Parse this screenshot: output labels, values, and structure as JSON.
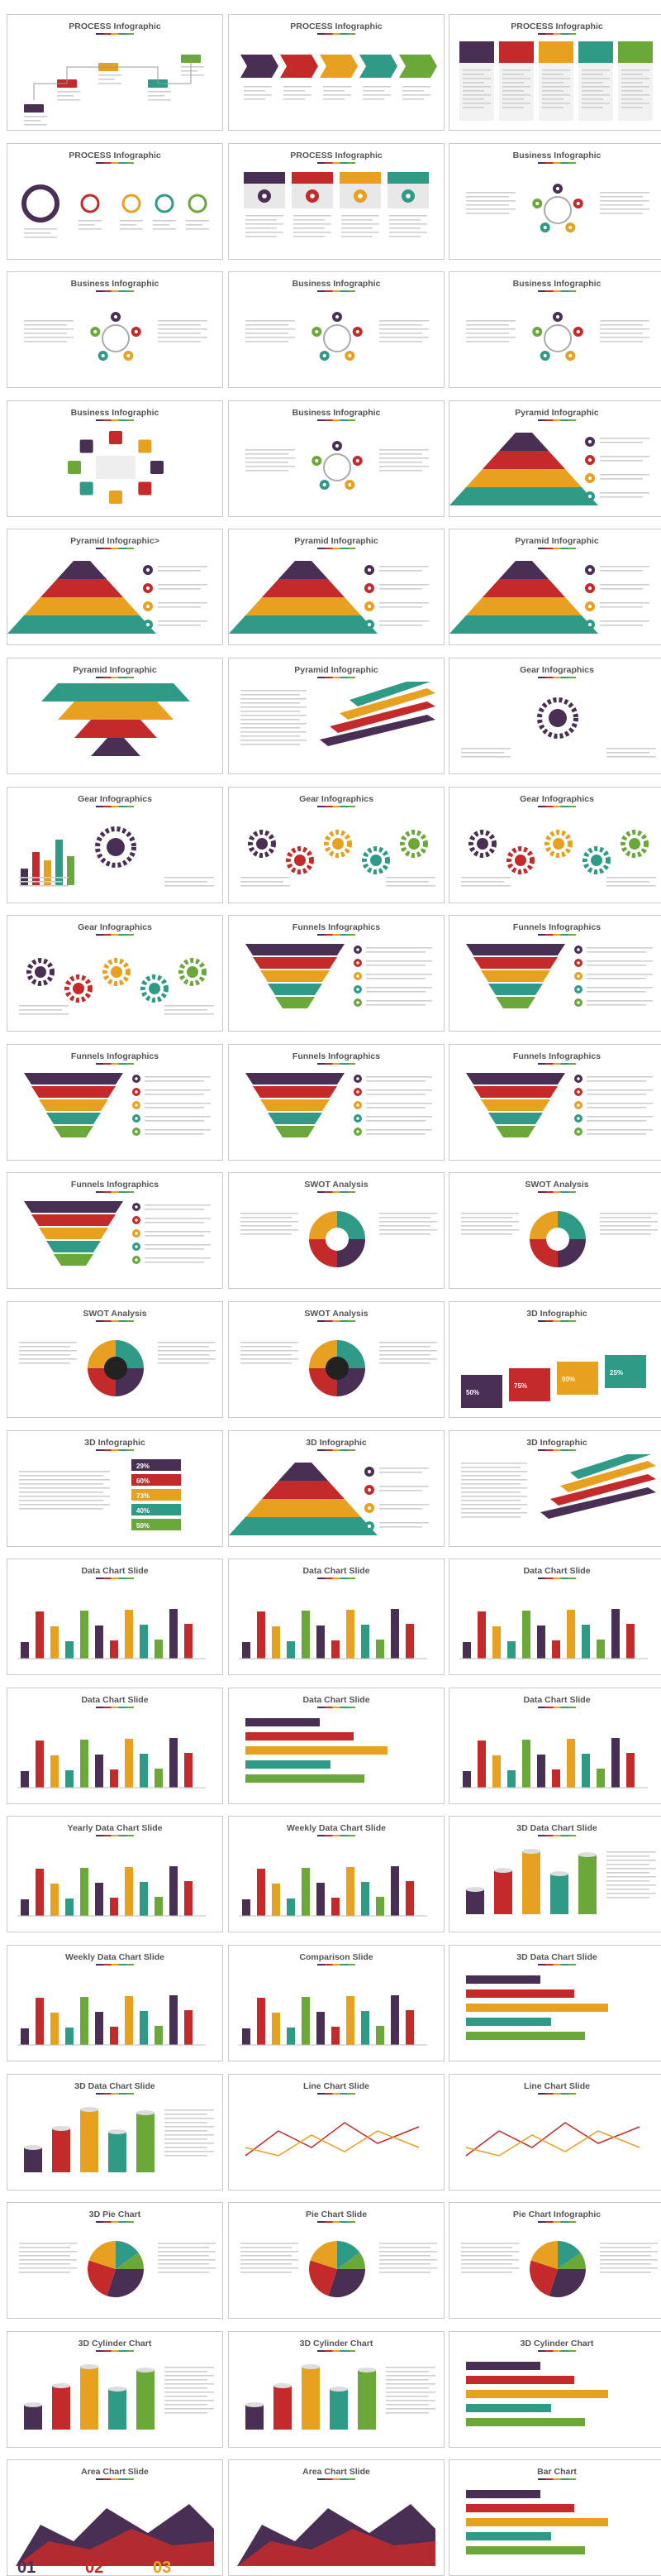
{
  "palette": [
    "#4a2f55",
    "#c42a2a",
    "#e8a020",
    "#2f9a85",
    "#6aa83a",
    "#8a8a8a"
  ],
  "slides": [
    {
      "title": "PROCESS Infographic",
      "kind": "process-steps"
    },
    {
      "title": "PROCESS Infographic",
      "kind": "process-arrows"
    },
    {
      "title": "PROCESS Infographic",
      "kind": "process-columns"
    },
    {
      "title": "PROCESS Infographic",
      "kind": "process-circles"
    },
    {
      "title": "PROCESS Infographic",
      "kind": "process-cards"
    },
    {
      "title": "Business Infographic",
      "kind": "hub"
    },
    {
      "title": "Business Infographic",
      "kind": "hub"
    },
    {
      "title": "Business Infographic",
      "kind": "hub"
    },
    {
      "title": "Business Infographic",
      "kind": "hub"
    },
    {
      "title": "Business Infographic",
      "kind": "hub-grid"
    },
    {
      "title": "Business Infographic",
      "kind": "radial"
    },
    {
      "title": "Pyramid Infographic",
      "kind": "pyramid"
    },
    {
      "title": "Pyramid Infographic>",
      "kind": "pyramid"
    },
    {
      "title": "Pyramid Infographic",
      "kind": "pyramid"
    },
    {
      "title": "Pyramid Infographic",
      "kind": "pyramid-wide"
    },
    {
      "title": "Pyramid Infographic",
      "kind": "pyramid-inverted"
    },
    {
      "title": "Pyramid Infographic",
      "kind": "layers"
    },
    {
      "title": "Gear Infographics",
      "kind": "gear"
    },
    {
      "title": "Gear Infographics",
      "kind": "gear-bars"
    },
    {
      "title": "Gear Infographics",
      "kind": "gears"
    },
    {
      "title": "Gear Infographics",
      "kind": "gears"
    },
    {
      "title": "Gear Infographics",
      "kind": "gears"
    },
    {
      "title": "Funnels Infographics",
      "kind": "funnel"
    },
    {
      "title": "Funnels Infographics",
      "kind": "funnel"
    },
    {
      "title": "Funnels Infographics",
      "kind": "funnel"
    },
    {
      "title": "Funnels Infographics",
      "kind": "funnel-ring"
    },
    {
      "title": "Funnels Infographics",
      "kind": "funnel-wide"
    },
    {
      "title": "Funnels Infographics",
      "kind": "funnel-arrows"
    },
    {
      "title": "SWOT Analysis",
      "kind": "swot-circle"
    },
    {
      "title": "SWOT Analysis",
      "kind": "swot-half"
    },
    {
      "title": "SWOT Analysis",
      "kind": "swot-hub"
    },
    {
      "title": "SWOT Analysis",
      "kind": "swot-hub"
    },
    {
      "title": "3D Infographic",
      "kind": "3d-blocks",
      "labels": [
        "50%",
        "75%",
        "90%",
        "25%"
      ]
    },
    {
      "title": "3D Infographic",
      "kind": "3d-stack",
      "labels": [
        "29%",
        "60%",
        "73%",
        "40%",
        "50%"
      ]
    },
    {
      "title": "3D Infographic",
      "kind": "3d-pyramid"
    },
    {
      "title": "3D Infographic",
      "kind": "3d-stairs"
    },
    {
      "title": "Data Chart Slide",
      "kind": "bars"
    },
    {
      "title": "Data Chart Slide",
      "kind": "bars"
    },
    {
      "title": "Data Chart Slide",
      "kind": "bars"
    },
    {
      "title": "Data Chart Slide",
      "kind": "bars"
    },
    {
      "title": "Data Chart Slide",
      "kind": "hbars"
    },
    {
      "title": "Data Chart Slide",
      "kind": "bars"
    },
    {
      "title": "Yearly Data Chart Slide",
      "kind": "bars"
    },
    {
      "title": "Weekly Data Chart Slide",
      "kind": "bars"
    },
    {
      "title": "3D Data Chart Slide",
      "kind": "cylinders"
    },
    {
      "title": "Weekly Data Chart Slide",
      "kind": "bars"
    },
    {
      "title": "Comparison Slide",
      "kind": "bars"
    },
    {
      "title": "3D Data Chart Slide",
      "kind": "hbars"
    },
    {
      "title": "3D Data Chart Slide",
      "kind": "cylinders"
    },
    {
      "title": "Line Chart Slide",
      "kind": "line"
    },
    {
      "title": "Line Chart Slide",
      "kind": "line"
    },
    {
      "title": "3D Pie Chart",
      "kind": "pie"
    },
    {
      "title": "Pie Chart Slide",
      "kind": "pie"
    },
    {
      "title": "Pie Chart Infographic",
      "kind": "pie"
    },
    {
      "title": "3D Cylinder Chart",
      "kind": "cylinders"
    },
    {
      "title": "3D Cylinder Chart",
      "kind": "cylinders"
    },
    {
      "title": "3D Cylinder Chart",
      "kind": "hbars"
    },
    {
      "title": "Area Chart Slide",
      "kind": "area",
      "digits": [
        "01",
        "02",
        "03"
      ]
    },
    {
      "title": "Area Chart Slide",
      "kind": "area"
    },
    {
      "title": "Bar Chart",
      "kind": "hbars"
    }
  ]
}
